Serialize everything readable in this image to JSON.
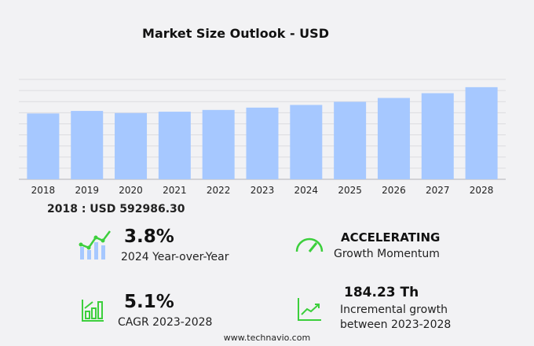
{
  "chart_data": {
    "type": "bar",
    "title": "Market Size Outlook  - USD",
    "categories": [
      "2018",
      "2019",
      "2020",
      "2021",
      "2022",
      "2023",
      "2024",
      "2025",
      "2026",
      "2027",
      "2028"
    ],
    "values": [
      592986.3,
      616000,
      597000,
      609000,
      625000,
      646000,
      670000,
      698000,
      733000,
      776000,
      830000
    ],
    "ylim": [
      0,
      900000
    ],
    "grid": true,
    "bar_color": "#a6c8ff",
    "xlabel": "",
    "ylabel": ""
  },
  "base_label": "2018 : USD  592986.30",
  "stats": {
    "yoy_value": "3.8%",
    "yoy_label": "2024 Year-over-Year",
    "momentum_value": "ACCELERATING",
    "momentum_label": "Growth Momentum",
    "cagr_value": "5.1%",
    "cagr_label": "CAGR 2023-2028",
    "incr_value": "184.23 Th",
    "incr_label1": "Incremental growth",
    "incr_label2": "between 2023-2028"
  },
  "icons": {
    "accent": "#3ccf3c"
  },
  "footer": "www.technavio.com"
}
